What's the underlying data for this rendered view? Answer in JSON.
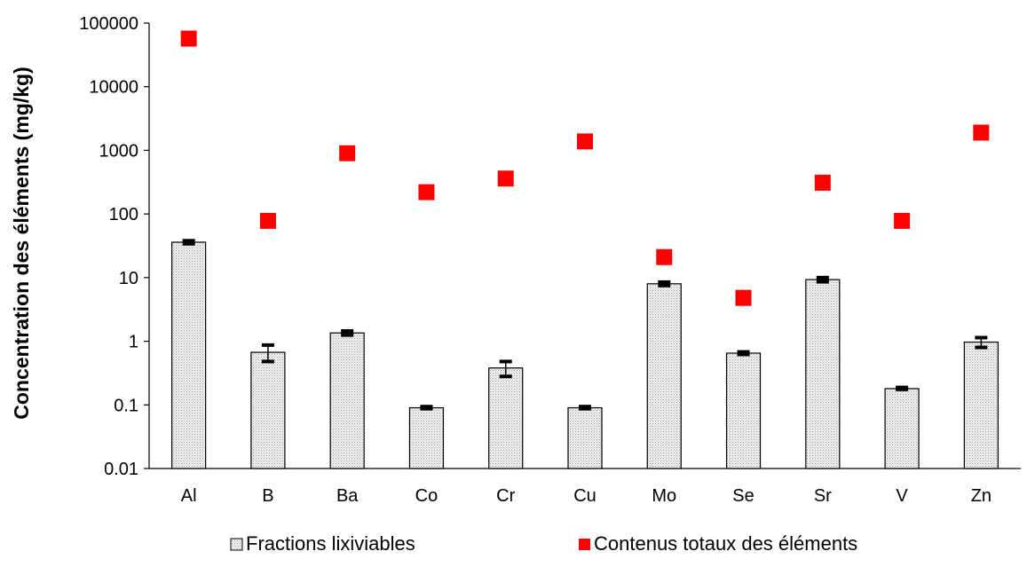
{
  "chart_data": {
    "type": "bar",
    "categories": [
      "Al",
      "B",
      "Ba",
      "Co",
      "Cr",
      "Cu",
      "Mo",
      "Se",
      "Sr",
      "V",
      "Zn"
    ],
    "xlabel": "",
    "ylabel": "Concentration des éléments (mg/kg)",
    "yscale": "log",
    "ylim": [
      0.01,
      100000
    ],
    "yticks": [
      "0.01",
      "0.1",
      "1",
      "10",
      "100",
      "1000",
      "10000",
      "100000"
    ],
    "grid": false,
    "legend_position": "bottom",
    "series": [
      {
        "name": "Fractions lixiviables",
        "kind": "bar",
        "color": "#d9d9d9",
        "values": [
          36,
          0.67,
          1.35,
          0.09,
          0.38,
          0.09,
          8,
          0.65,
          9.3,
          0.18,
          0.97
        ],
        "error_low": [
          34,
          0.48,
          1.25,
          0.087,
          0.28,
          0.087,
          7.5,
          0.62,
          8.6,
          0.175,
          0.8
        ],
        "error_high": [
          38,
          0.87,
          1.45,
          0.094,
          0.48,
          0.094,
          8.5,
          0.68,
          10,
          0.188,
          1.14
        ]
      },
      {
        "name": "Contenus totaux des éléments",
        "kind": "marker",
        "color": "#ff0000",
        "values": [
          57000,
          78,
          900,
          220,
          360,
          1380,
          21,
          4.8,
          310,
          78,
          1900
        ]
      }
    ]
  }
}
